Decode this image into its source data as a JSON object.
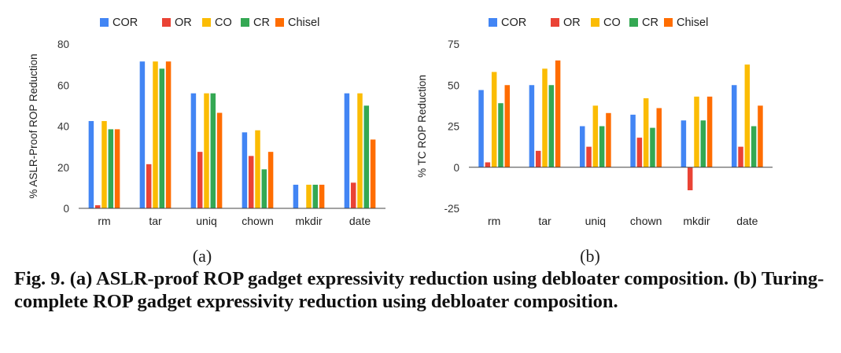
{
  "caption": "Fig. 9. (a) ASLR-proof ROP gadget expressivity reduction using debloater composition. (b) Turing-complete ROP gadget expressivity reduction using debloater composition.",
  "colors": {
    "COR": "#4285f4",
    "OR": "#ea4335",
    "CO": "#fbbc04",
    "CR": "#34a853",
    "Chisel": "#ff6d01"
  },
  "chart_data": [
    {
      "type": "bar",
      "panel_label": "(a)",
      "ylabel": "% ASLR-Proof ROP Reduction",
      "xlabel": "",
      "ylim": [
        0,
        80
      ],
      "yticks": [
        0,
        20,
        40,
        60,
        80
      ],
      "grid": false,
      "legend": "top",
      "categories": [
        "rm",
        "tar",
        "uniq",
        "chown",
        "mkdir",
        "date"
      ],
      "series": [
        {
          "name": "COR",
          "values": [
            42.5,
            71.5,
            56,
            37,
            11.5,
            56
          ]
        },
        {
          "name": "OR",
          "values": [
            1.5,
            21.5,
            27.5,
            25.5,
            0,
            12.5
          ]
        },
        {
          "name": "CO",
          "values": [
            42.5,
            71.5,
            56,
            38,
            11.5,
            56
          ]
        },
        {
          "name": "CR",
          "values": [
            38.5,
            68,
            56,
            19,
            11.5,
            50
          ]
        },
        {
          "name": "Chisel",
          "values": [
            38.5,
            71.5,
            46.5,
            27.5,
            11.5,
            33.5
          ]
        }
      ]
    },
    {
      "type": "bar",
      "panel_label": "(b)",
      "ylabel": "% TC ROP Reduction",
      "xlabel": "",
      "ylim": [
        -25,
        75
      ],
      "yticks": [
        -25,
        0,
        25,
        50,
        75
      ],
      "grid": false,
      "legend": "top",
      "categories": [
        "rm",
        "tar",
        "uniq",
        "chown",
        "mkdir",
        "date"
      ],
      "series": [
        {
          "name": "COR",
          "values": [
            47,
            50,
            25,
            32,
            28.5,
            50
          ]
        },
        {
          "name": "OR",
          "values": [
            3,
            10,
            12.5,
            18,
            -14,
            12.5
          ]
        },
        {
          "name": "CO",
          "values": [
            58,
            60,
            37.5,
            42,
            43,
            62.5
          ]
        },
        {
          "name": "CR",
          "values": [
            39,
            50,
            25,
            24,
            28.5,
            25
          ]
        },
        {
          "name": "Chisel",
          "values": [
            50,
            65,
            33,
            36,
            43,
            37.5
          ]
        }
      ]
    }
  ]
}
